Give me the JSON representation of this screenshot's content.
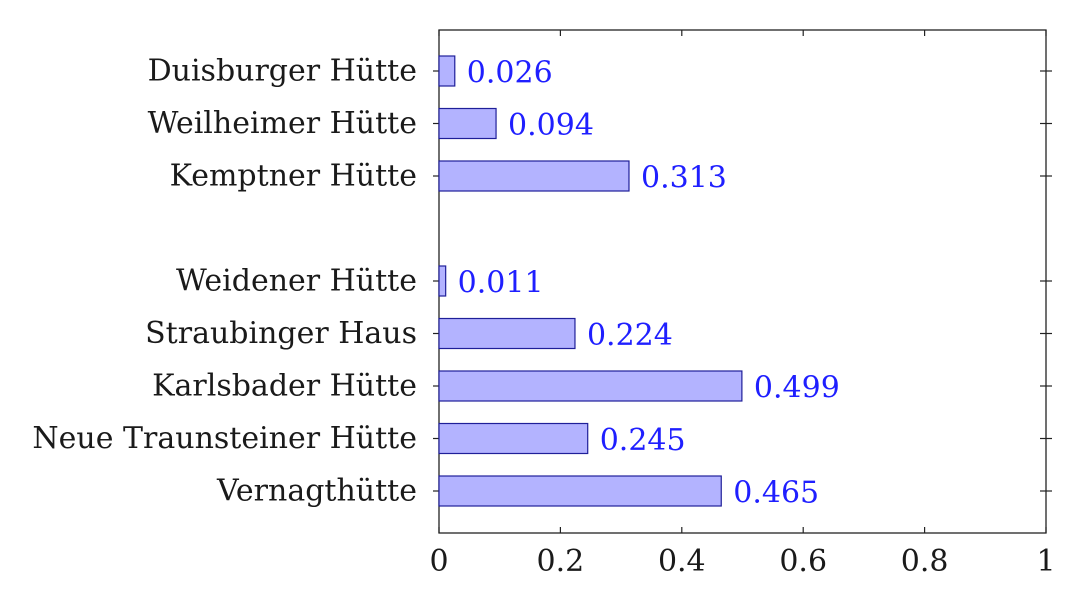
{
  "chart_data": {
    "type": "bar",
    "orientation": "horizontal",
    "categories": [
      "Duisburger Hütte",
      "Weilheimer Hütte",
      "Kemptner Hütte",
      "",
      "Weidener Hütte",
      "Straubinger Haus",
      "Karlsbader Hütte",
      "Neue Traunsteiner Hütte",
      "Vernagthütte"
    ],
    "values": [
      0.026,
      0.094,
      0.313,
      null,
      0.011,
      0.224,
      0.499,
      0.245,
      0.465
    ],
    "value_labels": [
      "0.026",
      "0.094",
      "0.313",
      "",
      "0.011",
      "0.224",
      "0.499",
      "0.245",
      "0.465"
    ],
    "xlim": [
      0,
      1
    ],
    "xticks": [
      0,
      0.2,
      0.4,
      0.6,
      0.8,
      1
    ],
    "xtick_labels": [
      "0",
      "0.2",
      "0.4",
      "0.6",
      "0.8",
      "1"
    ],
    "title": "",
    "xlabel": "",
    "ylabel": "",
    "grid": false,
    "colors": {
      "bar_fill": "#b3b3ff",
      "bar_stroke": "#1f1f99",
      "value_label": "#1f1fff",
      "axis": "#222222",
      "text": "#1a1a1a"
    }
  }
}
